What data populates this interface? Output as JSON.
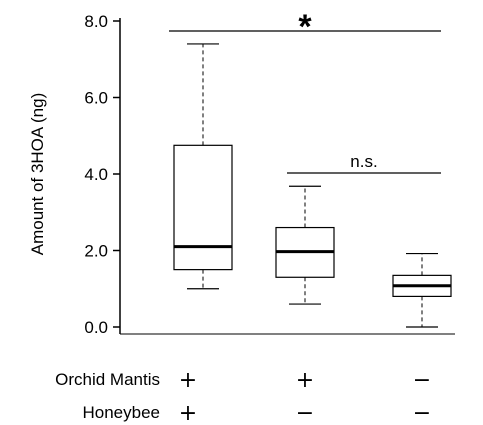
{
  "chart_data": {
    "type": "box",
    "ylabel": "Amount of 3HOA (ng)",
    "ylim": [
      0,
      8
    ],
    "yticks": [
      "0.0",
      "2.0",
      "4.0",
      "6.0",
      "8.0"
    ],
    "ytick_values": [
      0,
      2,
      4,
      6,
      8
    ],
    "grid": false,
    "groups": [
      {
        "whisker_low": 1.0,
        "q1": 1.5,
        "median": 2.1,
        "q3": 4.75,
        "whisker_high": 7.4
      },
      {
        "whisker_low": 0.6,
        "q1": 1.3,
        "median": 1.97,
        "q3": 2.6,
        "whisker_high": 3.68
      },
      {
        "whisker_low": 0.0,
        "q1": 0.8,
        "median": 1.08,
        "q3": 1.35,
        "whisker_high": 1.92
      }
    ],
    "comparisons": [
      {
        "from_group": 0,
        "to_group": 2,
        "label": "*"
      },
      {
        "from_group": 1,
        "to_group": 2,
        "label": "n.s."
      }
    ],
    "condition_rows": [
      {
        "label": "Orchid Mantis",
        "values": [
          "+",
          "+",
          "−"
        ]
      },
      {
        "label": "Honeybee",
        "values": [
          "+",
          "−",
          "−"
        ]
      }
    ]
  }
}
